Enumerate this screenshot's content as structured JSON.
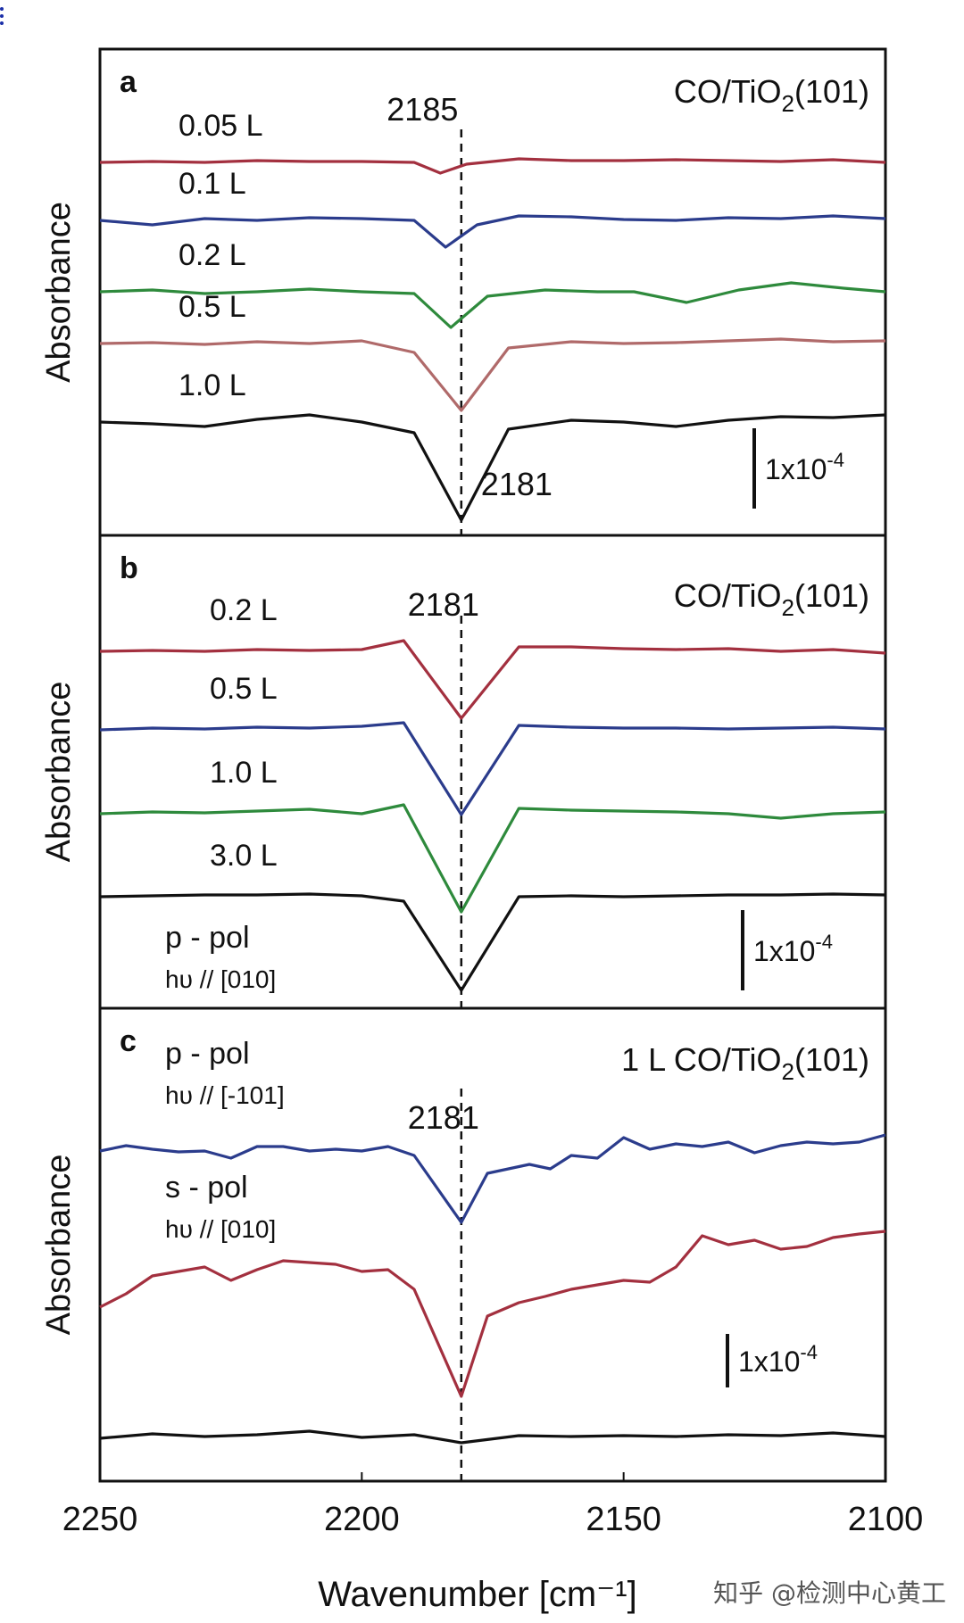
{
  "chart_data": [
    {
      "type": "line",
      "panel_label": "a",
      "title": "CO/TiO₂(101)",
      "ylabel": "Absorbance",
      "xlim": [
        2250,
        2100
      ],
      "reference_line": {
        "x": 2181,
        "labels": [
          {
            "text": "2185",
            "x": 2185
          },
          {
            "text": "2181",
            "x": 2181
          }
        ]
      },
      "scale_bar": "1x10⁻⁴",
      "series": [
        {
          "name": "0.05 L",
          "color": "#a3303f",
          "peak_x": 2185,
          "depth": 0.12,
          "x": [
            2250,
            2240,
            2230,
            2220,
            2210,
            2200,
            2190,
            2185,
            2180,
            2170,
            2160,
            2150,
            2140,
            2130,
            2120,
            2110,
            2100
          ],
          "y": [
            0.0,
            0.01,
            0.0,
            0.02,
            0.01,
            0.01,
            0.0,
            -0.12,
            -0.02,
            0.04,
            0.02,
            0.02,
            0.03,
            0.02,
            0.01,
            0.03,
            0.0
          ]
        },
        {
          "name": "0.1 L",
          "color": "#2b3c8c",
          "peak_x": 2184,
          "depth": 0.3,
          "x": [
            2250,
            2240,
            2230,
            2220,
            2210,
            2200,
            2190,
            2184,
            2178,
            2170,
            2160,
            2150,
            2140,
            2130,
            2120,
            2110,
            2100
          ],
          "y": [
            0.0,
            -0.05,
            0.02,
            0.0,
            0.03,
            0.02,
            0.0,
            -0.3,
            -0.05,
            0.05,
            0.04,
            0.01,
            0.0,
            0.03,
            0.02,
            0.05,
            0.02
          ]
        },
        {
          "name": "0.2 L",
          "color": "#2e8a3c",
          "peak_x": 2183,
          "depth": 0.4,
          "x": [
            2250,
            2240,
            2230,
            2220,
            2210,
            2200,
            2190,
            2183,
            2176,
            2165,
            2155,
            2148,
            2138,
            2128,
            2118,
            2108,
            2100
          ],
          "y": [
            0.0,
            0.02,
            -0.02,
            0.0,
            0.03,
            0.0,
            -0.02,
            -0.4,
            -0.05,
            0.02,
            0.0,
            0.0,
            -0.12,
            0.02,
            0.1,
            0.04,
            0.0
          ]
        },
        {
          "name": "0.5 L",
          "color": "#b06a6a",
          "peak_x": 2181,
          "depth": 0.75,
          "x": [
            2250,
            2240,
            2230,
            2220,
            2210,
            2200,
            2190,
            2181,
            2172,
            2160,
            2150,
            2140,
            2130,
            2120,
            2110,
            2100
          ],
          "y": [
            0.0,
            0.01,
            -0.01,
            0.02,
            0.0,
            0.03,
            -0.1,
            -0.75,
            -0.05,
            0.02,
            0.0,
            0.01,
            0.03,
            0.05,
            0.02,
            0.03
          ]
        },
        {
          "name": "1.0 L",
          "color": "#111111",
          "peak_x": 2181,
          "depth": 1.1,
          "x": [
            2250,
            2240,
            2230,
            2220,
            2210,
            2200,
            2190,
            2181,
            2172,
            2160,
            2150,
            2140,
            2130,
            2120,
            2110,
            2100
          ],
          "y": [
            0.0,
            -0.02,
            -0.05,
            0.03,
            0.08,
            0.0,
            -0.12,
            -1.1,
            -0.08,
            0.02,
            0.0,
            -0.05,
            0.02,
            0.06,
            0.05,
            0.08
          ]
        }
      ]
    },
    {
      "type": "line",
      "panel_label": "b",
      "title": "CO/TiO₂(101)",
      "ylabel": "Absorbance",
      "xlim": [
        2250,
        2100
      ],
      "reference_line": {
        "x": 2181,
        "labels": [
          {
            "text": "2181",
            "x": 2181
          }
        ]
      },
      "scale_bar": "1x10⁻⁴",
      "series": [
        {
          "name": "0.2 L",
          "color": "#a3303f",
          "peak_x": 2181,
          "depth": 0.75,
          "x": [
            2250,
            2240,
            2230,
            2220,
            2210,
            2200,
            2192,
            2181,
            2170,
            2160,
            2150,
            2140,
            2130,
            2120,
            2110,
            2100
          ],
          "y": [
            0.0,
            0.01,
            0.0,
            0.02,
            0.01,
            0.02,
            0.12,
            -0.75,
            0.05,
            0.05,
            0.03,
            0.02,
            0.03,
            0.0,
            0.02,
            -0.02
          ]
        },
        {
          "name": "0.5 L",
          "color": "#2b3c8c",
          "peak_x": 2181,
          "depth": 0.95,
          "x": [
            2250,
            2240,
            2230,
            2220,
            2210,
            2200,
            2192,
            2181,
            2170,
            2160,
            2150,
            2140,
            2130,
            2120,
            2110,
            2100
          ],
          "y": [
            0.0,
            0.02,
            0.01,
            0.03,
            0.02,
            0.04,
            0.08,
            -0.95,
            0.05,
            0.03,
            0.02,
            0.02,
            0.01,
            0.02,
            0.03,
            0.01
          ]
        },
        {
          "name": "1.0 L",
          "color": "#2e8a3c",
          "peak_x": 2181,
          "depth": 1.1,
          "x": [
            2250,
            2240,
            2230,
            2220,
            2210,
            2200,
            2192,
            2181,
            2170,
            2160,
            2150,
            2140,
            2130,
            2120,
            2110,
            2100
          ],
          "y": [
            0.0,
            0.02,
            0.01,
            0.03,
            0.05,
            0.0,
            0.1,
            -1.1,
            0.06,
            0.04,
            0.03,
            0.02,
            0.0,
            -0.05,
            0.0,
            0.02
          ]
        },
        {
          "name": "3.0 L",
          "color": "#111111",
          "peak_x": 2181,
          "depth": 1.05,
          "x": [
            2250,
            2240,
            2230,
            2220,
            2210,
            2200,
            2192,
            2181,
            2170,
            2160,
            2150,
            2140,
            2130,
            2120,
            2110,
            2100
          ],
          "y": [
            0.0,
            0.01,
            0.02,
            0.02,
            0.03,
            0.01,
            -0.05,
            -1.05,
            0.0,
            0.01,
            0.0,
            0.01,
            0.02,
            0.02,
            0.03,
            0.02
          ]
        }
      ]
    },
    {
      "type": "line",
      "panel_label": "c",
      "title": "1 L CO/TiO₂(101)",
      "ylabel": "Absorbance",
      "xlabel": "Wavenumber [cm⁻¹]",
      "xlim": [
        2250,
        2100
      ],
      "xticks": [
        2250,
        2200,
        2150,
        2100
      ],
      "reference_line": {
        "x": 2181,
        "labels": [
          {
            "text": "2181",
            "x": 2181
          }
        ]
      },
      "scale_bar": "1x10⁻⁴",
      "series": [
        {
          "name": "p - pol",
          "label_line2": "hυ // [010]",
          "color": "#2b3c8c",
          "peak_x": 2181,
          "depth": 0.8,
          "x": [
            2250,
            2245,
            2240,
            2235,
            2230,
            2225,
            2220,
            2215,
            2210,
            2205,
            2200,
            2195,
            2190,
            2181,
            2176,
            2172,
            2168,
            2164,
            2160,
            2155,
            2150,
            2145,
            2140,
            2135,
            2130,
            2125,
            2120,
            2115,
            2110,
            2105,
            2100
          ],
          "y": [
            0.0,
            0.06,
            0.02,
            -0.01,
            0.0,
            -0.08,
            0.05,
            0.05,
            0.0,
            0.02,
            0.0,
            0.05,
            -0.05,
            -0.8,
            -0.25,
            -0.2,
            -0.15,
            -0.2,
            -0.05,
            -0.08,
            0.15,
            0.02,
            0.08,
            0.05,
            0.1,
            -0.02,
            0.06,
            0.1,
            0.08,
            0.1,
            0.18
          ]
        },
        {
          "name": "p - pol",
          "label_line2": "hυ // [-101]",
          "color": "#a3303f",
          "peak_x": 2181,
          "depth": 1.0,
          "x": [
            2250,
            2245,
            2240,
            2235,
            2230,
            2225,
            2220,
            2215,
            2210,
            2205,
            2200,
            2195,
            2190,
            2181,
            2176,
            2170,
            2165,
            2160,
            2155,
            2150,
            2145,
            2140,
            2135,
            2130,
            2125,
            2120,
            2115,
            2110,
            2105,
            2100
          ],
          "y": [
            0.0,
            0.15,
            0.35,
            0.4,
            0.45,
            0.3,
            0.42,
            0.52,
            0.5,
            0.48,
            0.4,
            0.42,
            0.2,
            -1.0,
            -0.1,
            0.05,
            0.12,
            0.2,
            0.25,
            0.3,
            0.28,
            0.45,
            0.8,
            0.7,
            0.75,
            0.65,
            0.68,
            0.78,
            0.82,
            0.85
          ]
        },
        {
          "name": "s - pol",
          "label_line2": "hυ // [010]",
          "color": "#111111",
          "peak_x": 2181,
          "depth": 0.05,
          "x": [
            2250,
            2240,
            2230,
            2220,
            2210,
            2200,
            2190,
            2181,
            2170,
            2160,
            2150,
            2140,
            2130,
            2120,
            2110,
            2100
          ],
          "y": [
            0.0,
            0.05,
            0.02,
            0.04,
            0.08,
            0.01,
            0.04,
            -0.05,
            0.03,
            0.02,
            0.03,
            0.02,
            0.04,
            0.03,
            0.06,
            0.02
          ]
        }
      ]
    }
  ],
  "watermark": "知乎 @检测中心黄工"
}
